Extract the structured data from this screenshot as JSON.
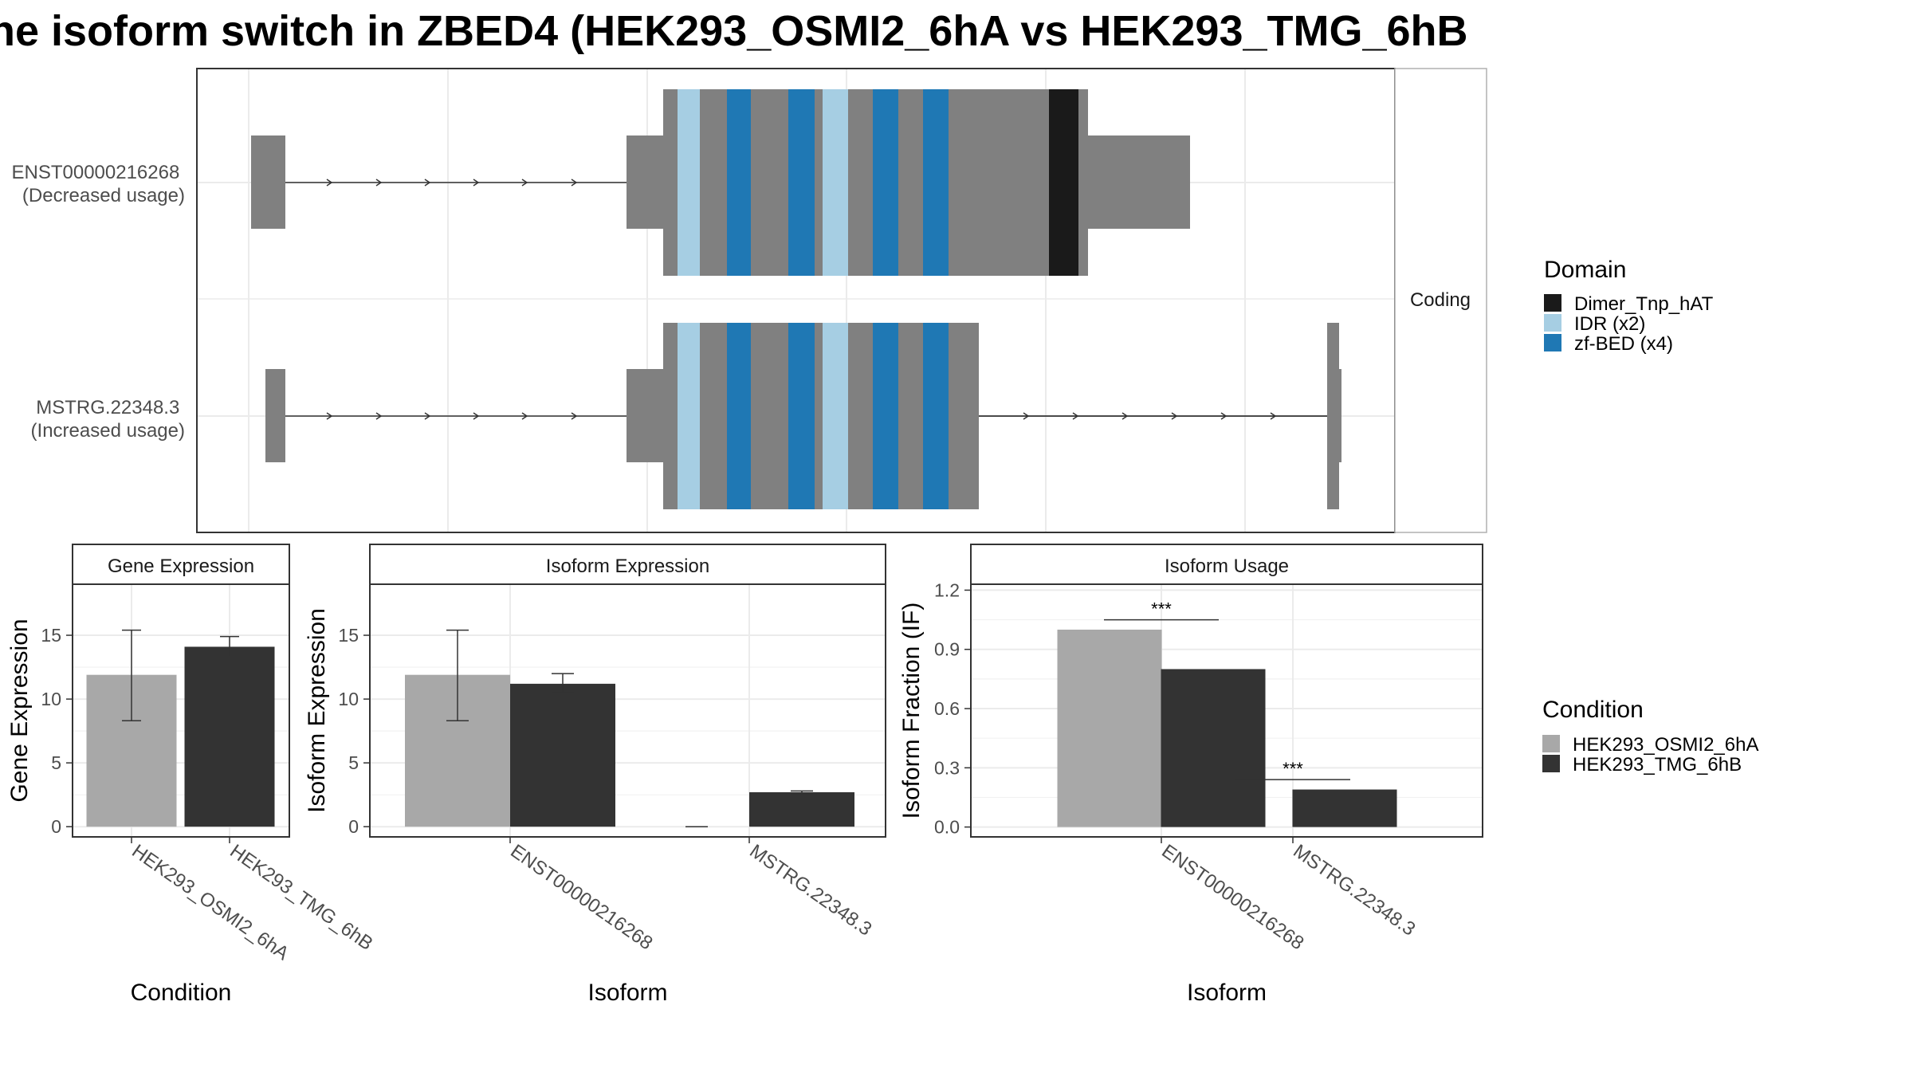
{
  "title": "he isoform switch in ZBED4 (HEK293_OSMI2_6hA vs HEK293_TMG_6hB",
  "colors": {
    "exon": "#808080",
    "intron": "#333333",
    "panel_border": "#333333",
    "grid": "#ebebeb",
    "strip_fill": "#ffffff",
    "cond_a": "#a8a8a8",
    "cond_b": "#333333",
    "Dimer_Tnp_hAT": "#1a1a1a",
    "IDR": "#a6cee3",
    "zf-BED": "#1f78b4"
  },
  "transcript_panel": {
    "strip_label": "Coding",
    "transcripts": [
      {
        "id": "ENST00000216268",
        "label_line1": "ENST00000216268",
        "label_line2": "(Decreased usage)"
      },
      {
        "id": "MSTRG.22348.3",
        "label_line1": "MSTRG.22348.3",
        "label_line2": "(Increased usage)"
      }
    ]
  },
  "legend_domain": {
    "title": "Domain",
    "items": [
      {
        "label": "Dimer_Tnp_hAT",
        "color": "#1a1a1a"
      },
      {
        "label": "IDR (x2)",
        "color": "#a6cee3"
      },
      {
        "label": "zf-BED (x4)",
        "color": "#1f78b4"
      }
    ]
  },
  "legend_condition": {
    "title": "Condition",
    "items": [
      {
        "label": "HEK293_OSMI2_6hA",
        "color": "#a8a8a8"
      },
      {
        "label": "HEK293_TMG_6hB",
        "color": "#333333"
      }
    ]
  },
  "chart_data": [
    {
      "type": "bar",
      "title": "Gene Expression",
      "xlabel": "Condition",
      "ylabel": "Gene Expression",
      "ylim": [
        -0.8,
        19
      ],
      "yticks": [
        0,
        5,
        10,
        15
      ],
      "tick_labels": [
        "0",
        "5",
        "10",
        "15"
      ],
      "categories": [
        "HEK293_OSMI2_6hA",
        "HEK293_TMG_6hB"
      ],
      "values": [
        11.9,
        14.1
      ],
      "error_low": [
        8.3,
        13.3
      ],
      "error_high": [
        15.4,
        14.9
      ],
      "grid": true
    },
    {
      "type": "bar",
      "title": "Isoform Expression",
      "xlabel": "Isoform",
      "ylabel": "Isoform Expression",
      "ylim": [
        -0.8,
        19
      ],
      "yticks": [
        0,
        5,
        10,
        15
      ],
      "tick_labels": [
        "0",
        "5",
        "10",
        "15"
      ],
      "categories": [
        "ENST00000216268",
        "MSTRG.22348.3"
      ],
      "series": [
        {
          "name": "HEK293_OSMI2_6hA",
          "values": [
            11.9,
            0.0
          ],
          "error_low": [
            8.3,
            0.0
          ],
          "error_high": [
            15.4,
            0.0
          ]
        },
        {
          "name": "HEK293_TMG_6hB",
          "values": [
            11.2,
            2.7
          ],
          "error_low": [
            10.5,
            2.6
          ],
          "error_high": [
            12.0,
            2.8
          ]
        }
      ],
      "grid": true
    },
    {
      "type": "bar",
      "title": "Isoform Usage",
      "xlabel": "Isoform",
      "ylabel": "Isoform Fraction (IF)",
      "ylim": [
        -0.05,
        1.23
      ],
      "yticks": [
        0.0,
        0.3,
        0.6,
        0.9,
        1.2
      ],
      "tick_labels": [
        "0.0",
        "0.3",
        "0.6",
        "0.9",
        "1.2"
      ],
      "categories": [
        "ENST00000216268",
        "MSTRG.22348.3"
      ],
      "series": [
        {
          "name": "HEK293_OSMI2_6hA",
          "values": [
            1.0,
            0.0
          ]
        },
        {
          "name": "HEK293_TMG_6hB",
          "values": [
            0.8,
            0.19
          ]
        }
      ],
      "annotations": [
        {
          "category": "ENST00000216268",
          "text": "***",
          "y": 1.05
        },
        {
          "category": "MSTRG.22348.3",
          "text": "***",
          "y": 0.24
        }
      ],
      "grid": true
    }
  ]
}
